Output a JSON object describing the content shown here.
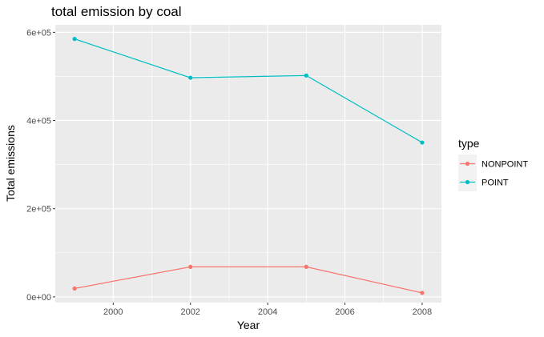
{
  "chart_data": {
    "type": "line",
    "title": "total emission by coal",
    "xlabel": "Year",
    "ylabel": "Total emissions",
    "x": [
      1999,
      2002,
      2005,
      2008
    ],
    "xlim": [
      1998.5,
      2008.5
    ],
    "ylim": [
      -13000,
      617000
    ],
    "x_ticks": [
      2000,
      2002,
      2004,
      2006,
      2008
    ],
    "x_tick_labels": [
      "2000",
      "2002",
      "2004",
      "2006",
      "2008"
    ],
    "y_ticks": [
      0,
      200000,
      400000,
      600000
    ],
    "y_tick_labels": [
      "0e+00",
      "2e+05",
      "4e+05",
      "6e+05"
    ],
    "grid": true,
    "legend": {
      "title": "type",
      "position": "right"
    },
    "series": [
      {
        "name": "NONPOINT",
        "color": "#F8766D",
        "values": [
          19000,
          68000,
          68000,
          9000
        ]
      },
      {
        "name": "POINT",
        "color": "#00BFC4",
        "values": [
          585000,
          497000,
          502000,
          350000
        ]
      }
    ]
  },
  "colors": {
    "panel_background": "#EBEBEB",
    "grid_line": "#FFFFFF",
    "legend_key_background": "#F2F2F2"
  }
}
